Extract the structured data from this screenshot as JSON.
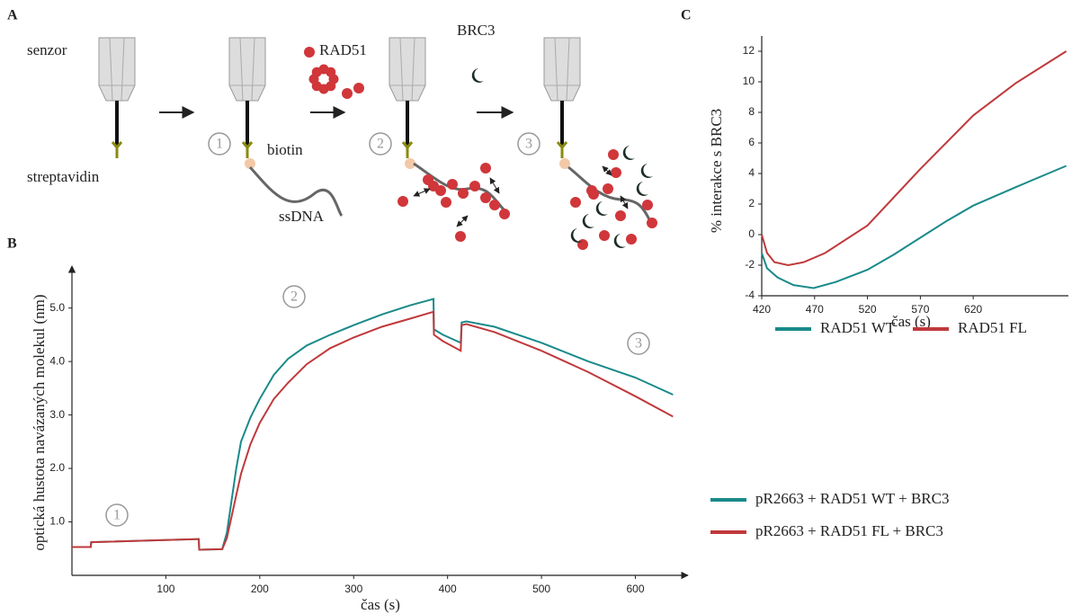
{
  "panels": {
    "a": "A",
    "b": "B",
    "c": "C"
  },
  "diagram": {
    "labels": {
      "sensor": "senzor",
      "streptavidin": "streptavidin",
      "rad51": "RAD51",
      "biotin": "biotin",
      "ssdna": "ssDNA",
      "brc3": "BRC3"
    },
    "steps": [
      "1",
      "2",
      "3"
    ]
  },
  "chart_data": [
    {
      "type": "line",
      "x_label": "čas (s)",
      "y_label": "optická hustota navázaných molekul (nm)",
      "annotations": [
        "1",
        "2",
        "3"
      ],
      "x": [
        0,
        20,
        20.5,
        135,
        135.5,
        160,
        165,
        170,
        175,
        180,
        190,
        200,
        215,
        230,
        250,
        275,
        300,
        330,
        360,
        385,
        385.5,
        395,
        414,
        415,
        420,
        450,
        500,
        550,
        600,
        640
      ],
      "series": [
        {
          "name": "pR2663 + RAD51 WT + BRC3",
          "color": "#1a8a8a",
          "values": [
            0.53,
            0.53,
            0.62,
            0.68,
            0.48,
            0.49,
            0.8,
            1.4,
            2.0,
            2.5,
            2.95,
            3.3,
            3.75,
            4.05,
            4.3,
            4.5,
            4.68,
            4.88,
            5.05,
            5.17,
            4.6,
            4.5,
            4.35,
            4.73,
            4.75,
            4.65,
            4.35,
            4.0,
            3.7,
            3.38
          ]
        },
        {
          "name": "pR2663 + RAD51  FL + BRC3",
          "color": "#c0393b",
          "values": [
            0.53,
            0.53,
            0.62,
            0.68,
            0.48,
            0.49,
            0.7,
            1.1,
            1.5,
            1.9,
            2.45,
            2.85,
            3.3,
            3.6,
            3.95,
            4.25,
            4.45,
            4.65,
            4.8,
            4.93,
            4.5,
            4.38,
            4.2,
            4.68,
            4.7,
            4.55,
            4.2,
            3.8,
            3.35,
            2.97
          ]
        }
      ],
      "xlim": [
        0,
        656
      ],
      "xticks": [
        100,
        200,
        300,
        400,
        500,
        600
      ],
      "ylim": [
        0,
        5.65
      ],
      "yticks": [
        {
          "value": 1,
          "label": "1.0"
        },
        {
          "value": 2,
          "label": "2.0"
        },
        {
          "value": 3,
          "label": "3.0"
        },
        {
          "value": 4,
          "label": "4.0"
        },
        {
          "value": 5,
          "label": "5.0"
        }
      ],
      "grid": false,
      "legend": "right"
    },
    {
      "type": "line",
      "x_label": "čas (s)",
      "y_label": "% interakce s BRC3",
      "series": [
        {
          "name": "RAD51 WT",
          "color": "#1a8a8a",
          "x": [
            420,
            425,
            435,
            450,
            469,
            490,
            520,
            545,
            570,
            595,
            620,
            660,
            708
          ],
          "values": [
            -1.2,
            -2.2,
            -2.8,
            -3.3,
            -3.5,
            -3.1,
            -2.3,
            -1.3,
            -0.2,
            0.9,
            1.9,
            3.1,
            4.5
          ]
        },
        {
          "name": "RAD51  FL",
          "color": "#c0393b",
          "x": [
            420,
            425,
            432,
            445,
            460,
            480,
            520,
            570,
            620,
            660,
            708
          ],
          "values": [
            0,
            -1.2,
            -1.8,
            -2.0,
            -1.8,
            -1.2,
            0.6,
            4.3,
            7.8,
            9.9,
            12
          ]
        }
      ],
      "xlim": [
        420,
        710
      ],
      "xticks": [
        420,
        470,
        520,
        570,
        620
      ],
      "ylim": [
        -4,
        13
      ],
      "yticks": [
        -4,
        -2,
        0,
        2,
        4,
        6,
        8,
        10,
        12
      ],
      "grid": false,
      "legend": "bottom"
    }
  ]
}
